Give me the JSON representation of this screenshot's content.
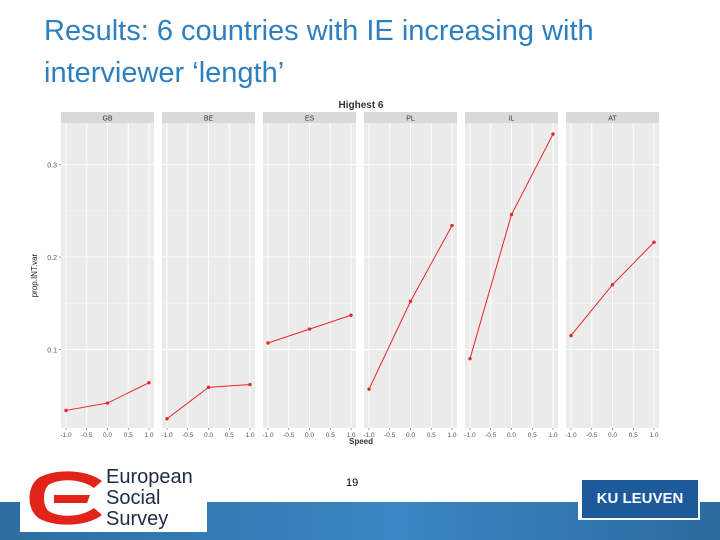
{
  "slide": {
    "title": "Results: 6 countries with IE increasing with interviewer ‘length’",
    "page_number": "19"
  },
  "logos": {
    "ess_lines": [
      "European",
      "Social",
      "Survey"
    ],
    "ku_leuven": "KU LEUVEN"
  },
  "colors": {
    "title": "#2e7fc0",
    "series": "#e8262a",
    "strip": "#d9d9d9",
    "panel": "#ebebeb",
    "footer": "#2f72aa"
  },
  "chart_data": {
    "type": "line",
    "title": "Highest 6",
    "xlabel": "Speed",
    "ylabel": "prop.INT.var",
    "xlim": [
      -1.0,
      1.0
    ],
    "ylim": [
      0.015,
      0.345
    ],
    "x_ticks": [
      -1.0,
      -0.5,
      0.0,
      0.5,
      1.0
    ],
    "x_tick_labels": [
      "-1.0",
      "-0.5",
      "0.0",
      "0.5",
      "1.0"
    ],
    "y_ticks": [
      0.1,
      0.2,
      0.3
    ],
    "y_tick_labels": [
      "0.1",
      "0.2",
      "0.3"
    ],
    "x": [
      -1.0,
      0.0,
      1.0
    ],
    "panels": [
      {
        "name": "GB",
        "values": [
          0.034,
          0.042,
          0.064
        ]
      },
      {
        "name": "BE",
        "values": [
          0.025,
          0.059,
          0.062
        ]
      },
      {
        "name": "ES",
        "values": [
          0.107,
          0.122,
          0.137
        ]
      },
      {
        "name": "PL",
        "values": [
          0.057,
          0.152,
          0.234
        ]
      },
      {
        "name": "IL",
        "values": [
          0.09,
          0.246,
          0.333
        ]
      },
      {
        "name": "AT",
        "values": [
          0.115,
          0.17,
          0.216
        ]
      }
    ]
  }
}
